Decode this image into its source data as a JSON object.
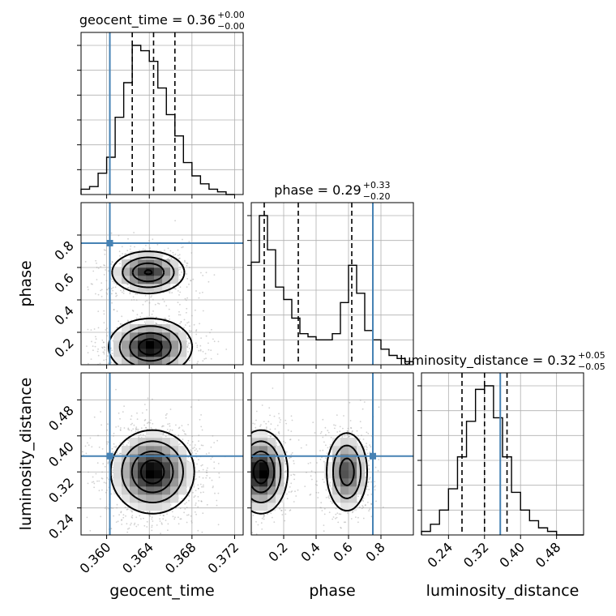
{
  "chart_data": {
    "type": "corner",
    "parameters": [
      "geocent_time",
      "phase",
      "luminosity_distance"
    ],
    "truths": [
      0.3603,
      0.75,
      0.355
    ],
    "truth_color": "#4682b4",
    "ranges": [
      [
        0.3576,
        0.3728
      ],
      [
        0.0,
        1.0
      ],
      [
        0.18,
        0.54
      ]
    ],
    "titles": [
      {
        "param": "geocent_time",
        "median": "0.36",
        "plus": "+0.00",
        "minus": "−0.00"
      },
      {
        "param": "phase",
        "median": "0.29",
        "plus": "+0.33",
        "minus": "−0.20"
      },
      {
        "param": "luminosity_distance",
        "median": "0.32",
        "plus": "+0.05",
        "minus": "−0.05"
      }
    ],
    "ticks": {
      "geocent_time": {
        "values": [
          0.36,
          0.364,
          0.368,
          0.372
        ],
        "labels": [
          "0.360",
          "0.364",
          "0.368",
          "0.372"
        ]
      },
      "phase": {
        "values": [
          0.2,
          0.4,
          0.6,
          0.8
        ],
        "labels": [
          "0.2",
          "0.4",
          "0.6",
          "0.8"
        ]
      },
      "luminosity_distance": {
        "values": [
          0.24,
          0.32,
          0.4,
          0.48
        ],
        "labels": [
          "0.24",
          "0.32",
          "0.40",
          "0.48"
        ]
      }
    },
    "marginals": [
      {
        "param": "geocent_time",
        "quantiles": [
          0.3624,
          0.3644,
          0.3664
        ],
        "bin_edges": [
          0.3576,
          0.3584,
          0.3592,
          0.36,
          0.3608,
          0.3616,
          0.3624,
          0.3632,
          0.364,
          0.3648,
          0.3656,
          0.3664,
          0.3672,
          0.368,
          0.3688,
          0.3696,
          0.3704,
          0.3712,
          0.372
        ],
        "counts": [
          2,
          3,
          8,
          14,
          29,
          42,
          56,
          54,
          50,
          40,
          30,
          22,
          12,
          7,
          4,
          2,
          1,
          0
        ]
      },
      {
        "param": "phase",
        "quantiles": [
          0.08,
          0.29,
          0.62
        ],
        "bin_edges": [
          0.0,
          0.05,
          0.1,
          0.15,
          0.2,
          0.25,
          0.3,
          0.35,
          0.4,
          0.45,
          0.5,
          0.55,
          0.6,
          0.65,
          0.7,
          0.75,
          0.8,
          0.85,
          0.9,
          0.95,
          1.0
        ],
        "counts": [
          33,
          48,
          37,
          25,
          21,
          15,
          10,
          9,
          8,
          8,
          10,
          20,
          32,
          23,
          11,
          8,
          5,
          3,
          2,
          1
        ]
      },
      {
        "param": "luminosity_distance",
        "quantiles": [
          0.27,
          0.32,
          0.37
        ],
        "bin_edges": [
          0.18,
          0.2,
          0.22,
          0.24,
          0.26,
          0.28,
          0.3,
          0.32,
          0.34,
          0.36,
          0.38,
          0.4,
          0.42,
          0.44,
          0.46,
          0.48,
          0.5,
          0.52,
          0.54
        ],
        "counts": [
          1,
          3,
          7,
          13,
          22,
          32,
          41,
          42,
          33,
          22,
          12,
          7,
          4,
          2,
          1,
          0,
          0,
          0
        ]
      }
    ],
    "joint_densities": [
      {
        "x_param": "geocent_time",
        "y_param": "phase",
        "components": [
          {
            "mx": 0.3639,
            "my": 0.57,
            "sx": 0.0017,
            "sy": 0.065,
            "w": 1.0
          },
          {
            "mx": 0.3641,
            "my": 0.11,
            "sx": 0.0019,
            "sy": 0.085,
            "w": 1.15
          }
        ]
      },
      {
        "x_param": "geocent_time",
        "y_param": "luminosity_distance",
        "components": [
          {
            "mx": 0.3643,
            "my": 0.32,
            "sx": 0.0019,
            "sy": 0.045,
            "w": 1.0
          }
        ]
      },
      {
        "x_param": "phase",
        "y_param": "luminosity_distance",
        "components": [
          {
            "mx": 0.06,
            "my": 0.32,
            "sx": 0.08,
            "sy": 0.045,
            "w": 1.2
          },
          {
            "mx": 0.59,
            "my": 0.32,
            "sx": 0.065,
            "sy": 0.045,
            "w": 0.9
          }
        ]
      }
    ]
  }
}
